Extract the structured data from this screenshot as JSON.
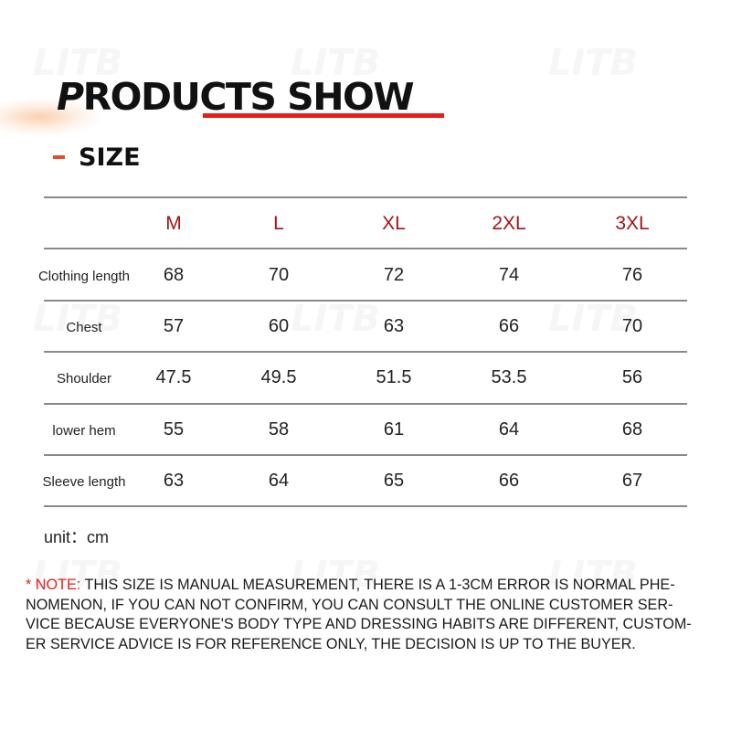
{
  "heading": {
    "first_letter": "P",
    "rest": "RODUCTS SHOW"
  },
  "section": {
    "label": "SIZE"
  },
  "table": {
    "sizes": [
      "M",
      "L",
      "XL",
      "2XL",
      "3XL"
    ],
    "rows": [
      {
        "label": "Clothing length",
        "values": [
          "68",
          "70",
          "72",
          "74",
          "76"
        ]
      },
      {
        "label": "Chest",
        "values": [
          "57",
          "60",
          "63",
          "66",
          "70"
        ]
      },
      {
        "label": "Shoulder",
        "values": [
          "47.5",
          "49.5",
          "51.5",
          "53.5",
          "56"
        ]
      },
      {
        "label": "lower hem",
        "values": [
          "55",
          "58",
          "61",
          "64",
          "68"
        ]
      },
      {
        "label": "Sleeve length",
        "values": [
          "63",
          "64",
          "65",
          "66",
          "67"
        ]
      }
    ]
  },
  "unit": "unit：cm",
  "note": {
    "prefix": "* NOTE:",
    "text": " THIS SIZE IS MANUAL MEASUREMENT, THERE IS A 1-3CM ERROR IS NORMAL PHE-NOMENON, IF YOU CAN NOT CONFIRM, YOU CAN CONSULT THE ONLINE CUSTOMER SER-VICE BECAUSE EVERYONE'S BODY TYPE AND DRESSING HABITS ARE DIFFERENT, CUSTOM-ER SERVICE ADVICE IS FOR REFERENCE ONLY, THE DECISION IS UP TO THE BUYER."
  },
  "watermark": "LITB",
  "colors": {
    "accent_red": "#e0201c",
    "size_header": "#a01418",
    "rule_gray": "#8a8a8a"
  }
}
